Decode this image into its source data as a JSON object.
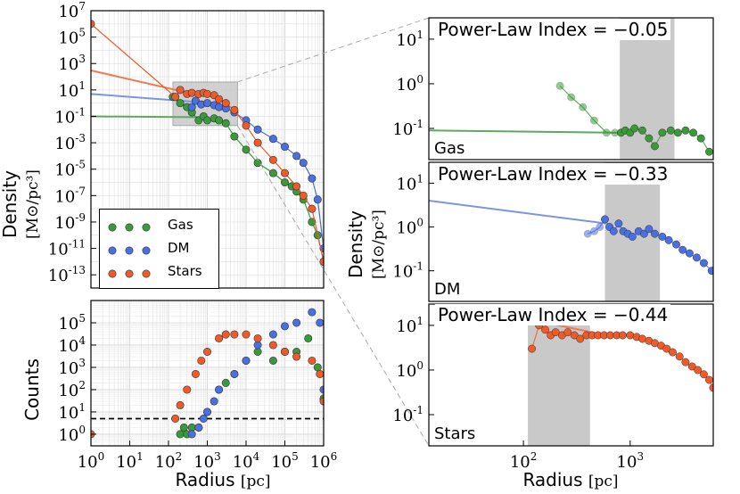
{
  "colors": {
    "gas": "#3a9a3a",
    "dm": "#4a6fe0",
    "stars": "#ef5a28",
    "gas_line": "#5caa5c",
    "dm_line": "#7a95e6",
    "stars_line": "#f07a50",
    "band": "#c9c9c9"
  },
  "labels": {
    "radius_xlabel": "Radius",
    "radius_unit": "[pc]",
    "density_ylabel": "Density",
    "density_unit": "[M⊙/pc³]",
    "counts_ylabel": "Counts"
  },
  "legend": [
    {
      "key": "gas",
      "label": "Gas"
    },
    {
      "key": "dm",
      "label": "DM"
    },
    {
      "key": "stars",
      "label": "Stars"
    }
  ],
  "chart_data": [
    {
      "type": "scatter",
      "title": "",
      "xlabel": "Radius [pc]",
      "ylabel": "Density [M⊙/pc³]",
      "xscale": "log",
      "yscale": "log",
      "xlim": [
        1,
        1000000
      ],
      "ylim": [
        1e-14,
        10000000.0
      ],
      "x_tick_labels": [
        "10^0",
        "10^1",
        "10^2",
        "10^3",
        "10^4",
        "10^5",
        "10^6"
      ],
      "y_tick_labels": [
        "10^7",
        "10^5",
        "10^3",
        "10^1",
        "10^-1",
        "10^-3",
        "10^-5",
        "10^-7",
        "10^-9",
        "10^-11",
        "10^-13"
      ],
      "series": [
        {
          "name": "Gas",
          "x": [
            130,
            200,
            300,
            400,
            600,
            800,
            1000,
            1500,
            2000,
            3000,
            5000,
            10000,
            20000,
            50000,
            100000,
            150000,
            200000,
            300000,
            500000,
            700000,
            1000000
          ],
          "y": [
            3,
            1,
            0.5,
            0.2,
            0.05,
            0.1,
            0.05,
            0.07,
            0.05,
            0.03,
            0.003,
            0.0003,
            3e-05,
            5e-06,
            1e-06,
            5e-07,
            2e-07,
            5e-08,
            1e-09,
            1e-10,
            1e-12
          ]
        },
        {
          "name": "DM",
          "x": [
            400,
            500,
            700,
            1000,
            1500,
            2000,
            3000,
            5000,
            10000,
            20000,
            50000,
            100000,
            200000,
            300000,
            500000,
            700000,
            1000000
          ],
          "y": [
            0.5,
            1.5,
            0.8,
            1,
            0.7,
            0.5,
            0.4,
            0.2,
            0.05,
            0.01,
            0.002,
            0.0005,
            0.0001,
            3e-05,
            2e-06,
            5e-08,
            1e-11
          ]
        },
        {
          "name": "Stars",
          "x": [
            1,
            150,
            200,
            300,
            400,
            600,
            800,
            1000,
            1500,
            2000,
            3000,
            5000,
            10000,
            20000,
            50000,
            100000,
            200000,
            300000,
            500000,
            1000000
          ],
          "y": [
            1000000,
            3,
            10,
            5,
            6,
            5,
            6,
            5,
            4,
            2,
            1,
            0.3,
            0.02,
            0.001,
            5e-05,
            5e-06,
            5e-07,
            1e-07,
            1e-08,
            1e-12
          ]
        }
      ],
      "fit_lines": [
        {
          "name": "Gas",
          "x": [
            1,
            800
          ],
          "y": [
            0.1,
            0.085
          ]
        },
        {
          "name": "DM",
          "x": [
            1,
            600
          ],
          "y": [
            5,
            1.2
          ]
        },
        {
          "name": "Stars",
          "x": [
            1,
            600
          ],
          "y": [
            300,
            4
          ]
        }
      ],
      "zoom_box": {
        "x": [
          130,
          6000
        ],
        "y": [
          0.02,
          40
        ]
      }
    },
    {
      "type": "scatter",
      "xlabel": "Radius [pc]",
      "ylabel": "Counts",
      "xscale": "log",
      "yscale": "log",
      "xlim": [
        1,
        1000000
      ],
      "ylim": [
        0.3,
        1000000
      ],
      "y_tick_labels": [
        "10^5",
        "10^4",
        "10^3",
        "10^2",
        "10^1",
        "10^0"
      ],
      "threshold_line": 5,
      "series": [
        {
          "name": "Gas",
          "x": [
            200,
            250,
            300,
            400,
            600,
            1000,
            2000,
            3000,
            5000,
            10000,
            20000,
            50000,
            100000,
            200000,
            400000,
            700000,
            1000000
          ],
          "y": [
            1,
            2,
            1,
            2,
            2,
            10,
            100,
            200,
            500,
            2000,
            5000,
            2000,
            5000,
            5000,
            20000,
            1000,
            40
          ]
        },
        {
          "name": "DM",
          "x": [
            400,
            600,
            800,
            1000,
            1500,
            2000,
            5000,
            10000,
            20000,
            50000,
            100000,
            200000,
            500000,
            800000,
            1000000
          ],
          "y": [
            1,
            2,
            5,
            10,
            30,
            100,
            500,
            2000,
            10000,
            30000,
            70000,
            100000,
            300000,
            100000,
            100
          ]
        },
        {
          "name": "Stars",
          "x": [
            1,
            150,
            200,
            300,
            500,
            700,
            1000,
            2000,
            3000,
            5000,
            10000,
            20000,
            50000,
            100000,
            200000,
            500000,
            800000,
            1000000
          ],
          "y": [
            1,
            5,
            20,
            100,
            500,
            2000,
            5000,
            20000,
            30000,
            30000,
            30000,
            20000,
            10000,
            5000,
            3000,
            2000,
            500,
            30
          ]
        }
      ]
    },
    {
      "type": "scatter",
      "panel_label": "Gas",
      "annotation": "Power-Law Index = −0.05",
      "ylabel": "Density [M⊙/pc³]",
      "xscale": "log",
      "yscale": "log",
      "xlim": [
        13,
        6000
      ],
      "ylim": [
        0.02,
        30
      ],
      "y_tick_labels": [
        "10^1",
        "10^0",
        "10^-1"
      ],
      "band": [
        800,
        2600
      ],
      "fit_line": {
        "x": [
          13,
          800
        ],
        "y": [
          0.09,
          0.08
        ]
      },
      "x": [
        220,
        280,
        360,
        460,
        600,
        720,
        820,
        900,
        1000,
        1100,
        1300,
        1500,
        1700,
        2000,
        2400,
        2800,
        3300,
        3900,
        4600,
        5500
      ],
      "y": [
        0.9,
        0.5,
        0.3,
        0.15,
        0.08,
        0.08,
        0.08,
        0.09,
        0.08,
        0.1,
        0.09,
        0.06,
        0.04,
        0.08,
        0.09,
        0.08,
        0.09,
        0.08,
        0.06,
        0.03
      ]
    },
    {
      "type": "scatter",
      "panel_label": "DM",
      "annotation": "Power-Law Index = −0.33",
      "xscale": "log",
      "yscale": "log",
      "xlim": [
        13,
        6000
      ],
      "ylim": [
        0.02,
        30
      ],
      "y_tick_labels": [
        "10^1",
        "10^0",
        "10^-1"
      ],
      "band": [
        580,
        1900
      ],
      "fit_line": {
        "x": [
          13,
          600
        ],
        "y": [
          4,
          1.2
        ]
      },
      "x": [
        400,
        460,
        520,
        580,
        640,
        700,
        780,
        860,
        950,
        1050,
        1200,
        1350,
        1500,
        1700,
        2000,
        2300,
        2700,
        3100,
        3600,
        4200,
        4900,
        5800
      ],
      "y": [
        0.7,
        0.8,
        1,
        1.5,
        1,
        0.8,
        1.2,
        0.8,
        0.7,
        0.6,
        0.8,
        0.7,
        0.9,
        0.7,
        0.6,
        0.5,
        0.4,
        0.3,
        0.25,
        0.2,
        0.15,
        0.1
      ]
    },
    {
      "type": "scatter",
      "panel_label": "Stars",
      "annotation": "Power-Law Index = −0.44",
      "xlabel": "Radius [pc]",
      "xscale": "log",
      "yscale": "log",
      "xlim": [
        13,
        6000
      ],
      "ylim": [
        0.02,
        30
      ],
      "x_tick_labels": [
        "10^2",
        "10^3"
      ],
      "y_tick_labels": [
        "10^1",
        "10^0",
        "10^-1"
      ],
      "band": [
        110,
        420
      ],
      "fit_line": {
        "x": [
          13,
          600
        ],
        "y": [
          40,
          6
        ]
      },
      "x": [
        120,
        140,
        160,
        180,
        200,
        230,
        260,
        300,
        340,
        390,
        440,
        500,
        570,
        650,
        750,
        850,
        1000,
        1150,
        1300,
        1500,
        1700,
        1950,
        2200,
        2500,
        2900,
        3300,
        3800,
        4300,
        4900,
        5500,
        6000
      ],
      "y": [
        3,
        10,
        8,
        6,
        7,
        6,
        7,
        6,
        5,
        6,
        6,
        6,
        6,
        6,
        6,
        6,
        6,
        5.5,
        5,
        4.5,
        4,
        3.5,
        3,
        2.5,
        2,
        1.5,
        1.2,
        1,
        0.8,
        0.6,
        0.4
      ]
    }
  ]
}
